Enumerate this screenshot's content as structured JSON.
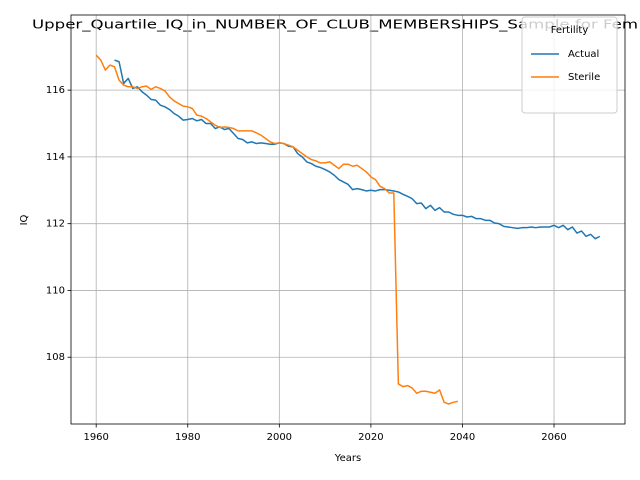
{
  "chart_data": {
    "type": "line",
    "title": "Upper_Quartile_IQ_in_NUMBER_OF_CLUB_MEMBERSHIPS_Sample for Fem",
    "xlabel": "Years",
    "ylabel": "IQ",
    "legend_title": "Fertility",
    "legend": "upper right",
    "grid": true,
    "x": [
      1960,
      1961,
      1962,
      1963,
      1964,
      1965,
      1966,
      1967,
      1968,
      1969,
      1970,
      1971,
      1972,
      1973,
      1974,
      1975,
      1976,
      1977,
      1978,
      1979,
      1980,
      1981,
      1982,
      1983,
      1984,
      1985,
      1986,
      1987,
      1988,
      1989,
      1990,
      1991,
      1992,
      1993,
      1994,
      1995,
      1996,
      1997,
      1998,
      1999,
      2000,
      2001,
      2002,
      2003,
      2004,
      2005,
      2006,
      2007,
      2008,
      2009,
      2010,
      2011,
      2012,
      2013,
      2014,
      2015,
      2016,
      2017,
      2018,
      2019,
      2020,
      2021,
      2022,
      2023,
      2024,
      2025,
      2026,
      2027,
      2028,
      2029,
      2030,
      2031,
      2032,
      2033,
      2034,
      2035,
      2036,
      2037,
      2038,
      2039,
      2040,
      2041,
      2042,
      2043,
      2044,
      2045,
      2046,
      2047,
      2048,
      2049,
      2050,
      2051,
      2052,
      2053,
      2054,
      2055,
      2056,
      2057,
      2058,
      2059,
      2060,
      2061,
      2062,
      2063,
      2064,
      2065,
      2066,
      2067,
      2068,
      2069,
      2070
    ],
    "series": [
      {
        "name": "Actual",
        "color": "#1f77b4",
        "values": [
          null,
          null,
          null,
          null,
          116.9,
          116.85,
          116.2,
          116.35,
          116.05,
          116.1,
          115.95,
          115.85,
          115.72,
          115.7,
          115.55,
          115.5,
          115.42,
          115.3,
          115.22,
          115.1,
          115.12,
          115.15,
          115.08,
          115.12,
          115.0,
          115.0,
          114.85,
          114.9,
          114.82,
          114.85,
          114.7,
          114.55,
          114.52,
          114.42,
          114.45,
          114.4,
          114.42,
          114.4,
          114.38,
          114.38,
          114.42,
          114.4,
          114.32,
          114.3,
          114.1,
          114.0,
          113.85,
          113.8,
          113.72,
          113.68,
          113.62,
          113.55,
          113.45,
          113.32,
          113.25,
          113.18,
          113.02,
          113.05,
          113.02,
          112.98,
          113.0,
          112.98,
          113.02,
          113.02,
          113.0,
          112.98,
          112.95,
          112.88,
          112.82,
          112.75,
          112.6,
          112.62,
          112.45,
          112.55,
          112.4,
          112.48,
          112.35,
          112.35,
          112.28,
          112.25,
          112.25,
          112.2,
          112.22,
          112.15,
          112.15,
          112.1,
          112.1,
          112.02,
          112.0,
          111.92,
          111.9,
          111.88,
          111.86,
          111.88,
          111.88,
          111.9,
          111.88,
          111.9,
          111.9,
          111.9,
          111.95,
          111.88,
          111.95,
          111.82,
          111.9,
          111.72,
          111.78,
          111.62,
          111.68,
          111.55,
          111.62
        ]
      },
      {
        "name": "Sterile",
        "color": "#ff7f0e",
        "values": [
          117.05,
          116.9,
          116.6,
          116.75,
          116.7,
          116.3,
          116.15,
          116.1,
          116.1,
          116.05,
          116.1,
          116.12,
          116.02,
          116.1,
          116.05,
          115.98,
          115.8,
          115.68,
          115.6,
          115.52,
          115.5,
          115.45,
          115.25,
          115.22,
          115.15,
          115.05,
          114.95,
          114.88,
          114.9,
          114.88,
          114.85,
          114.78,
          114.78,
          114.78,
          114.78,
          114.72,
          114.65,
          114.55,
          114.45,
          114.4,
          114.42,
          114.4,
          114.35,
          114.3,
          114.2,
          114.1,
          114.0,
          113.92,
          113.88,
          113.82,
          113.82,
          113.85,
          113.75,
          113.65,
          113.78,
          113.78,
          113.72,
          113.75,
          113.65,
          113.55,
          113.4,
          113.32,
          113.12,
          113.05,
          112.92,
          112.92,
          107.2,
          107.12,
          107.15,
          107.08,
          106.92,
          106.98,
          106.98,
          106.95,
          106.92,
          107.02,
          106.65,
          106.6,
          106.65,
          106.68,
          null,
          null,
          null,
          null,
          null,
          null,
          null,
          null,
          null,
          null,
          null,
          null,
          null,
          null,
          null,
          null,
          null,
          null,
          null,
          null,
          null,
          null,
          null,
          null,
          null,
          null,
          null,
          null,
          null,
          null,
          null
        ]
      }
    ],
    "xlim": [
      1954.5,
      2075.5
    ],
    "xticks": [
      1960,
      1980,
      2000,
      2020,
      2040,
      2060
    ],
    "ylim": [
      106.0,
      118.25
    ],
    "yticks": [
      108,
      110,
      112,
      114,
      116
    ]
  }
}
